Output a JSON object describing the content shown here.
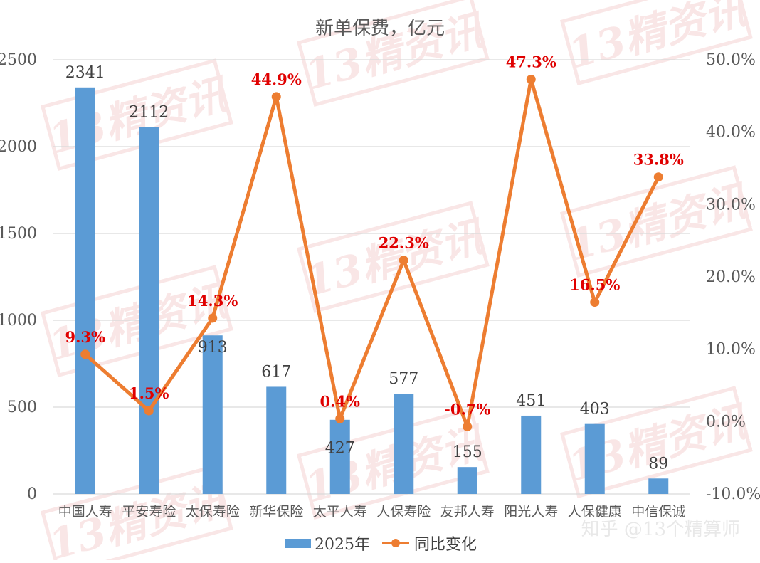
{
  "chart_data": {
    "type": "bar+line",
    "title": "新单保费，亿元",
    "categories": [
      "中国人寿",
      "平安寿险",
      "太保寿险",
      "新华保险",
      "太平人寿",
      "人保寿险",
      "友邦人寿",
      "阳光人寿",
      "人保健康",
      "中信保诚"
    ],
    "series": [
      {
        "name": "2025年",
        "type": "bar",
        "axis": "left",
        "color": "#5B9BD5",
        "values": [
          2341,
          2112,
          913,
          617,
          427,
          577,
          155,
          451,
          403,
          89
        ],
        "labels": [
          "2341",
          "2112",
          "913",
          "617",
          "427",
          "577",
          "155",
          "451",
          "403",
          "89"
        ]
      },
      {
        "name": "同比变化",
        "type": "line",
        "axis": "right",
        "color": "#ED7D31",
        "label_color": "#E00000",
        "values": [
          9.3,
          1.5,
          14.3,
          44.9,
          0.4,
          22.3,
          -0.7,
          47.3,
          16.5,
          33.8
        ],
        "labels": [
          "9.3%",
          "1.5%",
          "14.3%",
          "44.9%",
          "0.4%",
          "22.3%",
          "-0.7%",
          "47.3%",
          "16.5%",
          "33.8%"
        ]
      }
    ],
    "y_left": {
      "min": 0,
      "max": 2500,
      "ticks": [
        "0",
        "500",
        "1000",
        "1500",
        "2000",
        "2500"
      ],
      "tick_values": [
        0,
        500,
        1000,
        1500,
        2000,
        2500
      ]
    },
    "y_right": {
      "min": -10,
      "max": 50,
      "ticks": [
        "-10.0%",
        "0.0%",
        "10.0%",
        "20.0%",
        "30.0%",
        "40.0%",
        "50.0%"
      ],
      "tick_values": [
        -10,
        0,
        10,
        20,
        30,
        40,
        50
      ]
    },
    "grid": true,
    "legend": {
      "position": "bottom"
    }
  },
  "watermark_text": "13精资讯",
  "credit": "知乎 @13个精算师"
}
